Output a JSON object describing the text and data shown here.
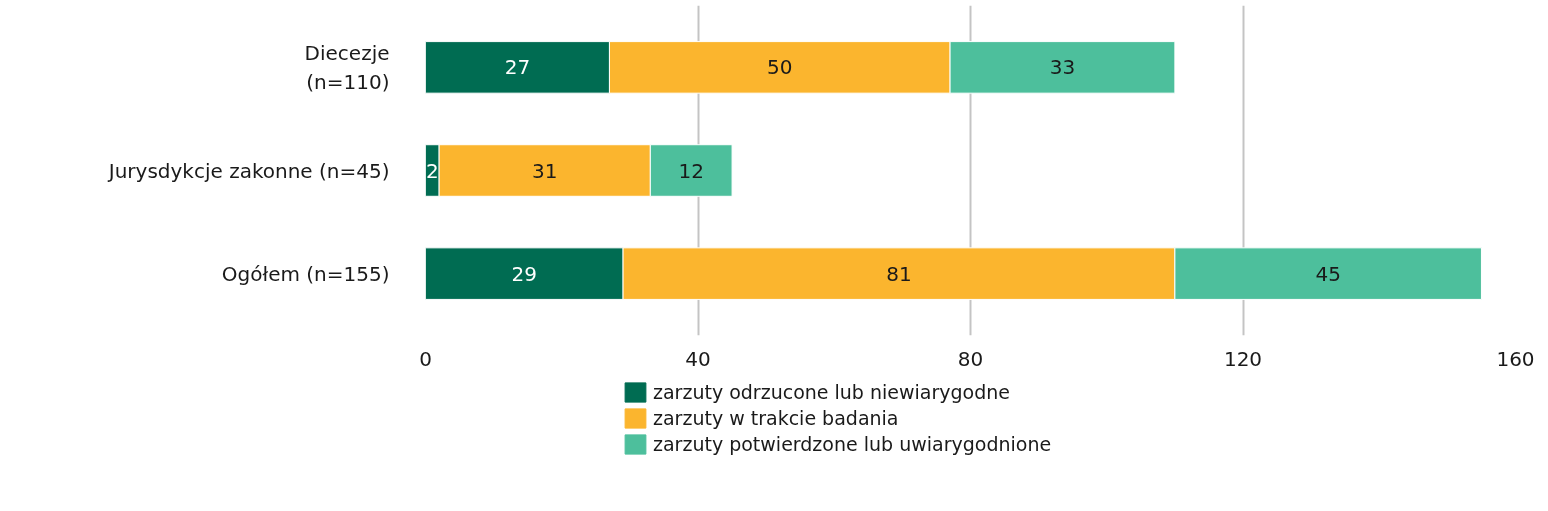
{
  "chart_data": {
    "type": "bar",
    "orientation": "horizontal",
    "stacked": true,
    "categories": [
      "Diecezje\n(n=110)",
      "Jurysdykcje zakonne (n=45)",
      "Ogółem (n=155)"
    ],
    "series": [
      {
        "name": "zarzuty odrzucone lub niewiarygodne",
        "color": "#006c52",
        "values": [
          27,
          2,
          29
        ]
      },
      {
        "name": "zarzuty w trakcie badania",
        "color": "#fbb52e",
        "values": [
          50,
          31,
          81
        ]
      },
      {
        "name": "zarzuty potwierdzone lub uwiarygodnione",
        "color": "#4dbf9c",
        "values": [
          33,
          12,
          45
        ]
      }
    ],
    "xlim": [
      0,
      160
    ],
    "xticks": [
      0,
      40,
      80,
      120,
      160
    ],
    "grid": "x",
    "legend": "bottom",
    "data_labels": true
  }
}
